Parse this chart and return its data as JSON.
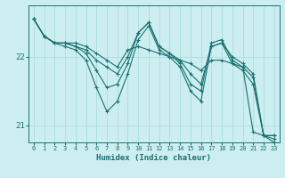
{
  "xlabel": "Humidex (Indice chaleur)",
  "bg_color": "#cceef0",
  "line_color": "#1a7070",
  "grid_color": "#aadddd",
  "xmin": -0.5,
  "xmax": 23.5,
  "ymin": 20.75,
  "ymax": 22.75,
  "yticks": [
    21,
    22
  ],
  "xticks": [
    0,
    1,
    2,
    3,
    4,
    5,
    6,
    7,
    8,
    9,
    10,
    11,
    12,
    13,
    14,
    15,
    16,
    17,
    18,
    19,
    20,
    21,
    22,
    23
  ],
  "series": [
    [
      22.55,
      22.3,
      22.2,
      22.2,
      22.2,
      22.15,
      22.05,
      21.95,
      21.85,
      22.1,
      22.15,
      22.1,
      22.05,
      22.0,
      21.95,
      21.9,
      21.8,
      21.95,
      21.95,
      21.9,
      21.85,
      20.9,
      20.85,
      20.85
    ],
    [
      22.55,
      22.3,
      22.2,
      22.2,
      22.15,
      22.1,
      21.95,
      21.85,
      21.75,
      22.0,
      22.35,
      22.5,
      22.15,
      22.05,
      21.95,
      21.75,
      21.6,
      22.15,
      22.2,
      22.0,
      21.9,
      21.75,
      20.85,
      20.85
    ],
    [
      22.55,
      22.3,
      22.2,
      22.2,
      22.15,
      22.05,
      21.8,
      21.55,
      21.6,
      21.9,
      22.35,
      22.5,
      22.15,
      22.05,
      21.9,
      21.6,
      21.5,
      22.2,
      22.25,
      21.95,
      21.85,
      21.7,
      20.85,
      20.8
    ],
    [
      22.55,
      22.3,
      22.2,
      22.15,
      22.1,
      21.95,
      21.55,
      21.2,
      21.35,
      21.75,
      22.25,
      22.45,
      22.1,
      22.0,
      21.85,
      21.5,
      21.35,
      22.15,
      22.2,
      21.9,
      21.8,
      21.6,
      20.85,
      20.75
    ]
  ]
}
